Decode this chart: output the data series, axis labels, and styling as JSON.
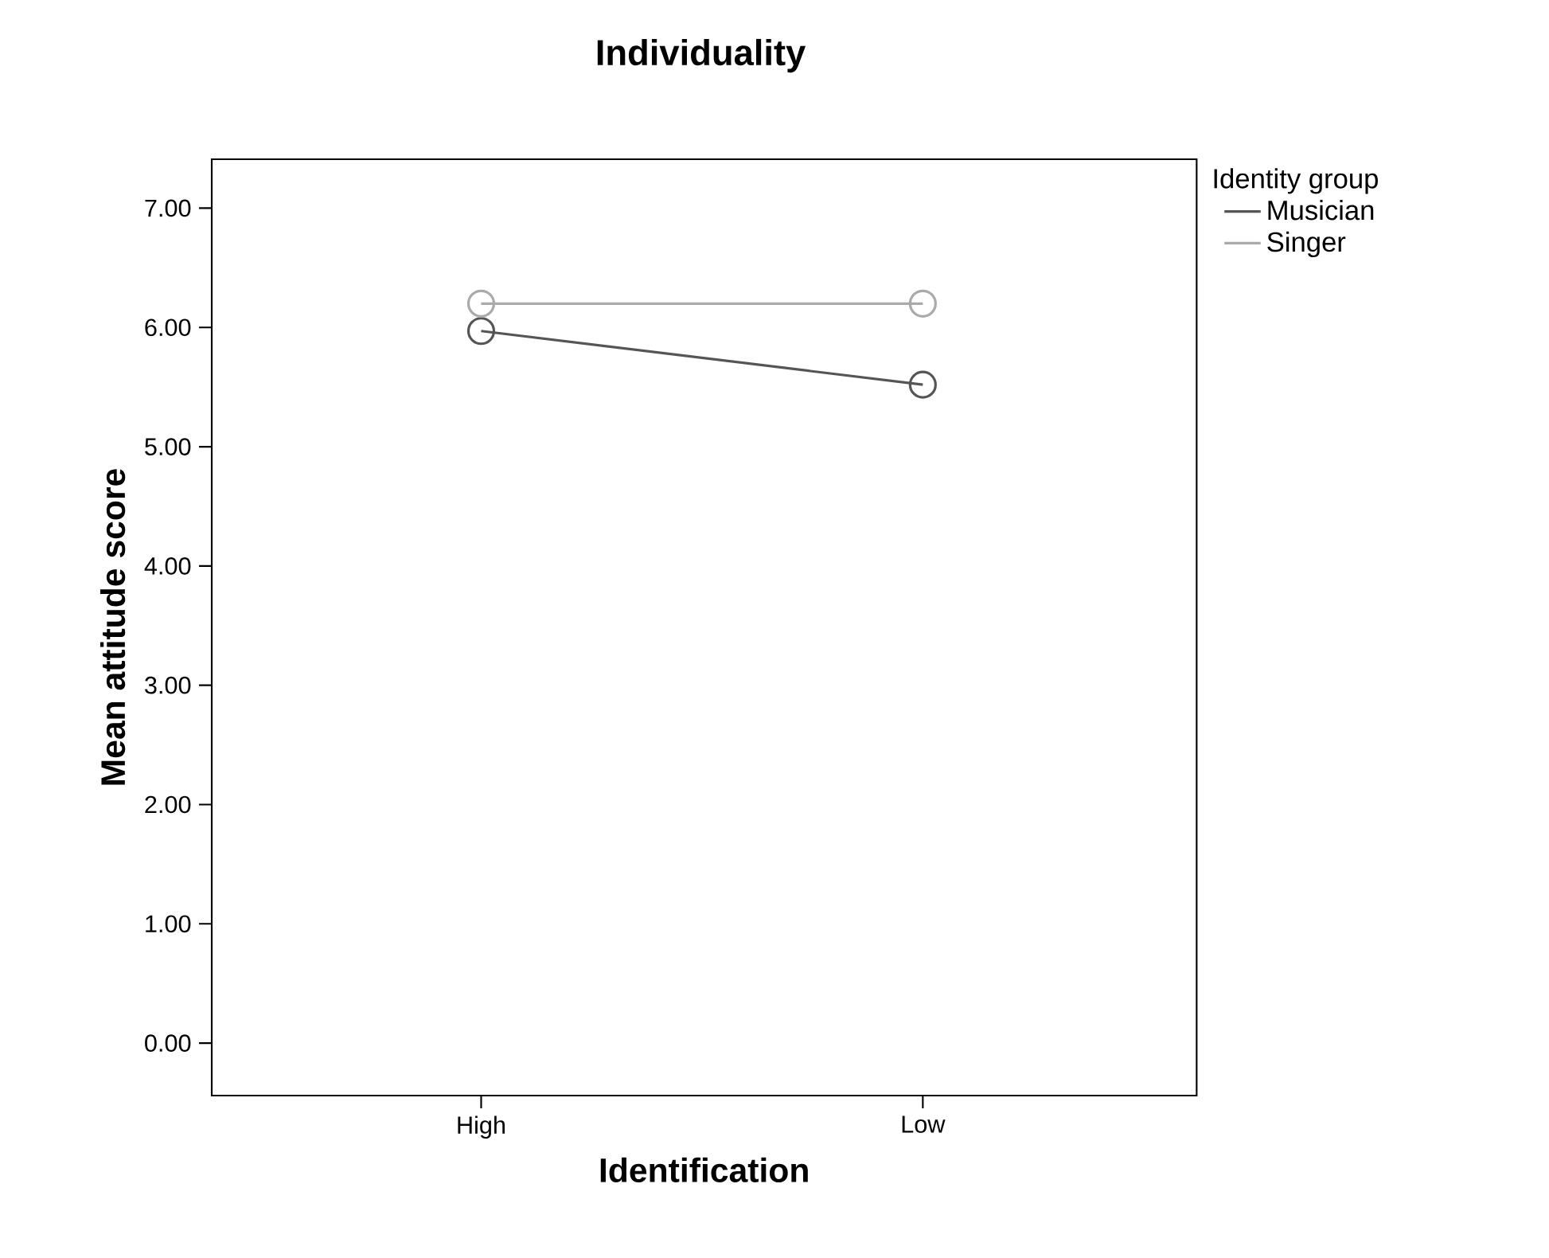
{
  "chart_data": {
    "type": "line",
    "title": "Individuality",
    "xlabel": "Identification",
    "ylabel": "Mean attitude score",
    "legend_title": "Identity group",
    "categories": [
      "High",
      "Low"
    ],
    "series": [
      {
        "name": "Musician",
        "color": "#555555",
        "values": [
          5.97,
          5.52
        ]
      },
      {
        "name": "Singer",
        "color": "#aaaaaa",
        "values": [
          6.2,
          6.2
        ]
      }
    ],
    "ylim": [
      -0.44,
      7.41
    ],
    "yticks": [
      {
        "value": 0,
        "label": "0.00"
      },
      {
        "value": 1,
        "label": "1.00"
      },
      {
        "value": 2,
        "label": "2.00"
      },
      {
        "value": 3,
        "label": "3.00"
      },
      {
        "value": 4,
        "label": "4.00"
      },
      {
        "value": 5,
        "label": "5.00"
      },
      {
        "value": 6,
        "label": "6.00"
      },
      {
        "value": 7,
        "label": "7.00"
      }
    ],
    "marker": "circle",
    "line_style": "solid",
    "legend": "right",
    "grid": false
  }
}
